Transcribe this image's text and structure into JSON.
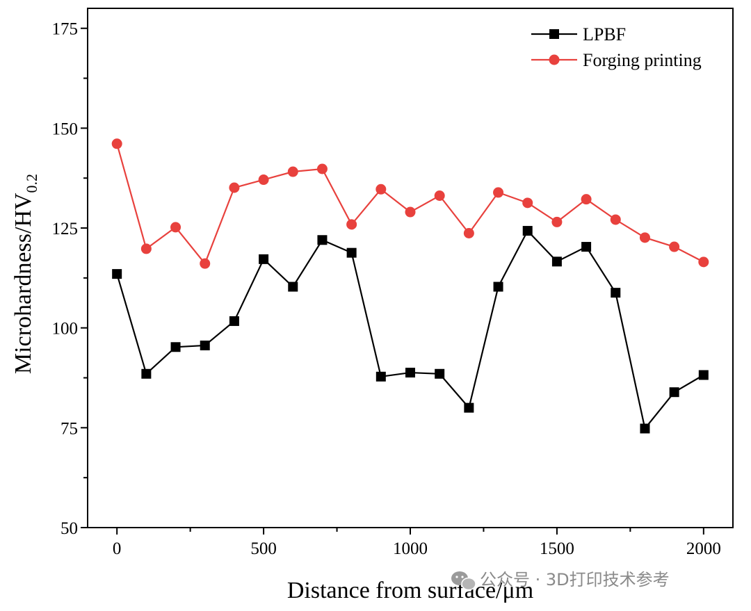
{
  "chart_data": {
    "type": "line",
    "title": "",
    "xlabel": "Distance from surface/μm",
    "ylabel": {
      "main": "Microhardness/HV",
      "subscript": "0.2"
    },
    "xlim": [
      -100,
      2100
    ],
    "ylim": [
      50,
      180
    ],
    "xticks": [
      0,
      500,
      1000,
      1500,
      2000
    ],
    "yticks": [
      50,
      75,
      100,
      125,
      150,
      175
    ],
    "x": [
      0,
      100,
      200,
      300,
      400,
      500,
      600,
      700,
      800,
      900,
      1000,
      1100,
      1200,
      1300,
      1400,
      1500,
      1600,
      1700,
      1800,
      1900,
      2000
    ],
    "series": [
      {
        "name": "LPBF",
        "color": "#000000",
        "marker": "square",
        "values": [
          113.5,
          88.5,
          95.2,
          95.6,
          101.7,
          117.2,
          110.3,
          122.0,
          118.8,
          87.8,
          88.8,
          88.5,
          80.0,
          110.3,
          124.3,
          116.6,
          120.3,
          108.8,
          74.8,
          83.9,
          88.2
        ]
      },
      {
        "name": "Forging printing",
        "color": "#e8413d",
        "marker": "circle",
        "values": [
          146.1,
          119.8,
          125.2,
          116.1,
          135.1,
          137.1,
          139.1,
          139.8,
          125.9,
          134.7,
          129.0,
          133.1,
          123.7,
          133.9,
          131.3,
          126.5,
          132.2,
          127.1,
          122.6,
          120.3,
          116.5
        ]
      }
    ],
    "legend_position": "top-right",
    "grid": false
  },
  "watermark": {
    "icon": "wechat-icon",
    "text": "公众号 · 3D打印技术参考"
  }
}
